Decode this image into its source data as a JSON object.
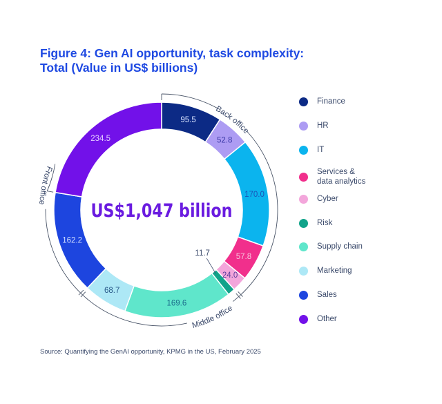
{
  "chart_data": {
    "type": "pie",
    "variant": "donut",
    "title": "Figure 4: Gen AI opportunity, task complexity:",
    "subtitle": "Total (Value in US$ billions)",
    "center_label": "US$1,047 billion",
    "unit": "US$ billions",
    "start": "top",
    "direction": "clockwise",
    "segments": [
      {
        "name": "Finance",
        "value": 95.5,
        "label": "95.5",
        "color": "#0c2a85",
        "label_color": "#d8e3ff"
      },
      {
        "name": "HR",
        "value": 52.8,
        "label": "52.8",
        "color": "#ad9cf3",
        "label_color": "#3d3aa8"
      },
      {
        "name": "IT",
        "value": 170.0,
        "label": "170.0",
        "color": "#0bb4ee",
        "label_color": "#1a54b8"
      },
      {
        "name": "Services & data analytics",
        "value": 57.8,
        "label": "57.8",
        "color": "#f12f8c",
        "label_color": "#f7c2dc"
      },
      {
        "name": "Cyber",
        "value": 24.0,
        "label": "24.0",
        "color": "#f3a6db",
        "label_color": "#5a3d9b"
      },
      {
        "name": "Risk",
        "value": 11.7,
        "label": "11.7",
        "color": "#11a38a",
        "label_color": "#3b4a6b",
        "label_outside": true
      },
      {
        "name": "Supply chain",
        "value": 169.6,
        "label": "169.6",
        "color": "#5fe6cb",
        "label_color": "#1a6b8a"
      },
      {
        "name": "Marketing",
        "value": 68.7,
        "label": "68.7",
        "color": "#ade8f6",
        "label_color": "#2a5a8a"
      },
      {
        "name": "Sales",
        "value": 162.2,
        "label": "162.2",
        "color": "#1d45df",
        "label_color": "#cfdcff"
      },
      {
        "name": "Other",
        "value": 234.5,
        "label": "234.5",
        "color": "#7211e9",
        "label_color": "#e3ccff"
      }
    ],
    "groups": [
      {
        "name": "Back office",
        "segments": [
          "Finance",
          "HR",
          "IT",
          "Services & data analytics",
          "Cyber"
        ]
      },
      {
        "name": "Middle office",
        "segments": [
          "Risk",
          "Supply chain",
          "Marketing"
        ]
      },
      {
        "name": "Front office",
        "segments": [
          "Sales"
        ]
      }
    ],
    "legend_position": "right"
  },
  "legend": [
    {
      "label": "Finance",
      "color": "#0c2a85"
    },
    {
      "label": "HR",
      "color": "#ad9cf3"
    },
    {
      "label": "IT",
      "color": "#0bb4ee"
    },
    {
      "label": "Services &\ndata analytics",
      "color": "#f12f8c"
    },
    {
      "label": "Cyber",
      "color": "#f3a6db"
    },
    {
      "label": "Risk",
      "color": "#11a38a"
    },
    {
      "label": "Supply chain",
      "color": "#5fe6cb"
    },
    {
      "label": "Marketing",
      "color": "#ade8f6"
    },
    {
      "label": "Sales",
      "color": "#1d45df"
    },
    {
      "label": "Other",
      "color": "#7211e9"
    }
  ],
  "source": "Source: Quantifying the GenAI opportunity, KPMG in the US, February 2025",
  "colors": {
    "title": "#1e49e2",
    "text": "#3b4a6b",
    "bracket": "#4a5568",
    "total": "#6a1be0"
  }
}
